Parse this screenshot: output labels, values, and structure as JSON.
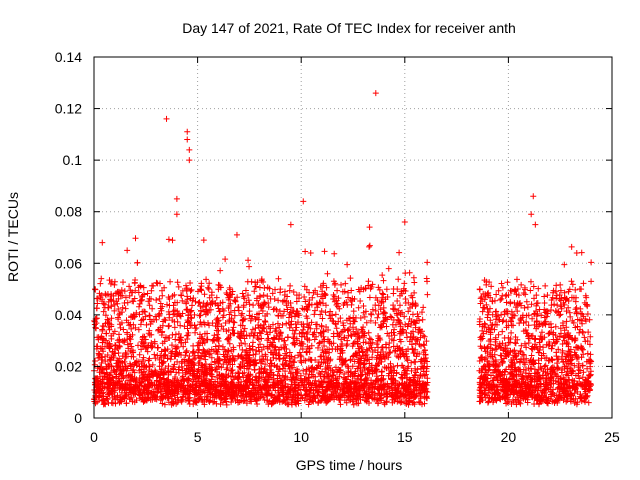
{
  "chart_data": {
    "type": "scatter",
    "title": "Day 147 of 2021, Rate Of TEC Index for receiver anth",
    "xlabel": "GPS time / hours",
    "ylabel": "ROTI / TECUs",
    "xlim": [
      0,
      25
    ],
    "ylim": [
      0,
      0.14
    ],
    "xticks": [
      "0",
      "5",
      "10",
      "15",
      "20",
      "25"
    ],
    "yticks": [
      "0",
      "0.02",
      "0.04",
      "0.06",
      "0.08",
      "0.1",
      "0.12",
      "0.14"
    ],
    "grid": true,
    "marker": "plus",
    "color": "#ff0000",
    "segments": [
      [
        0.0,
        16.1
      ],
      [
        18.6,
        24.0
      ]
    ],
    "notable_points": [
      {
        "x": 3.5,
        "y": 0.116
      },
      {
        "x": 4.5,
        "y": 0.111
      },
      {
        "x": 4.5,
        "y": 0.108
      },
      {
        "x": 4.6,
        "y": 0.104
      },
      {
        "x": 4.6,
        "y": 0.1
      },
      {
        "x": 4.0,
        "y": 0.085
      },
      {
        "x": 4.0,
        "y": 0.079
      },
      {
        "x": 10.1,
        "y": 0.084
      },
      {
        "x": 13.6,
        "y": 0.126
      },
      {
        "x": 21.2,
        "y": 0.086
      },
      {
        "x": 21.1,
        "y": 0.079
      },
      {
        "x": 21.3,
        "y": 0.075
      },
      {
        "x": 9.5,
        "y": 0.075
      },
      {
        "x": 15.0,
        "y": 0.076
      },
      {
        "x": 13.3,
        "y": 0.074
      },
      {
        "x": 1.6,
        "y": 0.065
      },
      {
        "x": 5.3,
        "y": 0.069
      },
      {
        "x": 6.9,
        "y": 0.071
      },
      {
        "x": 23.3,
        "y": 0.064
      },
      {
        "x": 0.4,
        "y": 0.068
      }
    ],
    "typical_range": [
      0.005,
      0.04
    ]
  }
}
